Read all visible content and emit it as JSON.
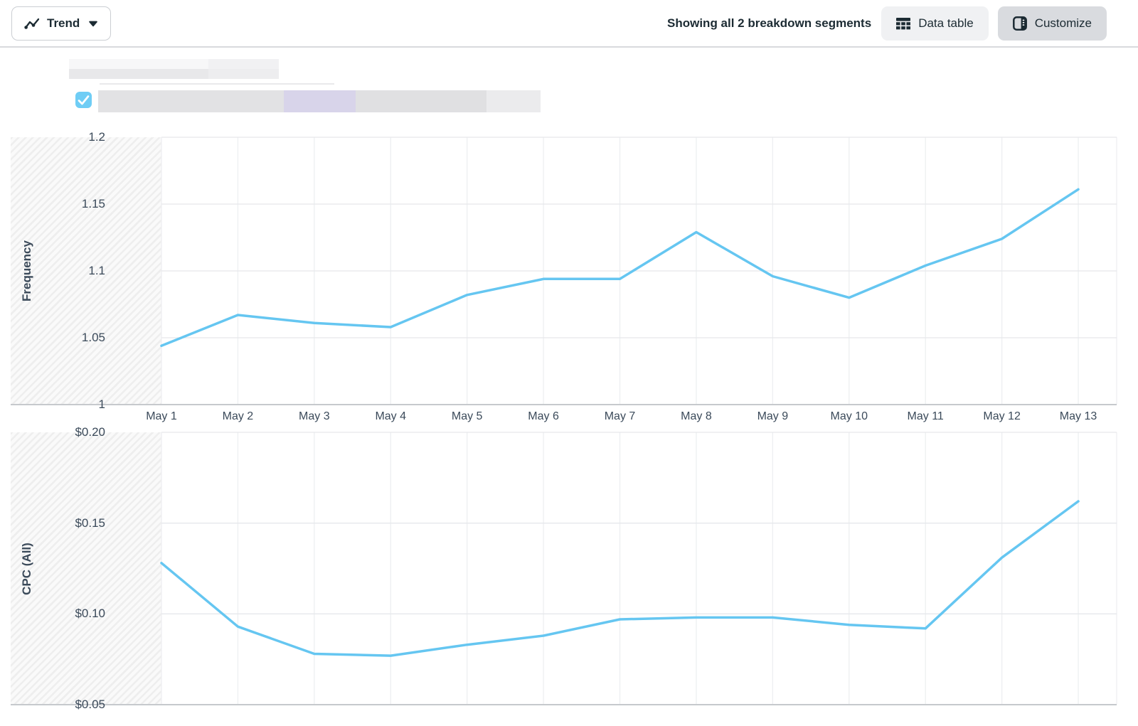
{
  "toolbar": {
    "view_selector_label": "Trend",
    "segments_status": "Showing all 2 breakdown segments",
    "data_table_label": "Data table",
    "customize_label": "Customize"
  },
  "legend": {
    "checkbox_checked": true
  },
  "chart_data": [
    {
      "type": "line",
      "ylabel": "Frequency",
      "categories": [
        "May 1",
        "May 2",
        "May 3",
        "May 4",
        "May 5",
        "May 6",
        "May 7",
        "May 8",
        "May 9",
        "May 10",
        "May 11",
        "May 12",
        "May 13"
      ],
      "values": [
        1.044,
        1.067,
        1.061,
        1.058,
        1.082,
        1.094,
        1.094,
        1.129,
        1.096,
        1.08,
        1.104,
        1.124,
        1.161
      ],
      "ylim": [
        1.0,
        1.2
      ],
      "yticks": [
        {
          "v": 1.2,
          "label": "1.2"
        },
        {
          "v": 1.15,
          "label": "1.15"
        },
        {
          "v": 1.1,
          "label": "1.1"
        },
        {
          "v": 1.05,
          "label": "1.05"
        },
        {
          "v": 1.0,
          "label": "1"
        }
      ],
      "grid": true,
      "legend_position": "none"
    },
    {
      "type": "line",
      "ylabel": "CPC (All)",
      "categories": [
        "May 1",
        "May 2",
        "May 3",
        "May 4",
        "May 5",
        "May 6",
        "May 7",
        "May 8",
        "May 9",
        "May 10",
        "May 11",
        "May 12",
        "May 13"
      ],
      "values": [
        0.128,
        0.093,
        0.078,
        0.077,
        0.083,
        0.088,
        0.097,
        0.098,
        0.098,
        0.094,
        0.092,
        0.131,
        0.162
      ],
      "ylim": [
        0.05,
        0.2
      ],
      "yticks": [
        {
          "v": 0.2,
          "label": "$0.20"
        },
        {
          "v": 0.15,
          "label": "$0.15"
        },
        {
          "v": 0.1,
          "label": "$0.10"
        },
        {
          "v": 0.05,
          "label": "$0.05"
        }
      ],
      "grid": true,
      "legend_position": "none"
    }
  ],
  "colors": {
    "line_blue": "#65c6f1",
    "checkbox_blue": "#6fcdf5",
    "text_dark": "#1c2b33",
    "axis_text": "#3b4a5a",
    "grid_horizontal": "#e6e8eb",
    "grid_vertical": "#edeff1",
    "axis_line": "#c6c9cd",
    "lavender_segment": "#d8d4ea",
    "redact_gray": "#e2e2e4"
  }
}
